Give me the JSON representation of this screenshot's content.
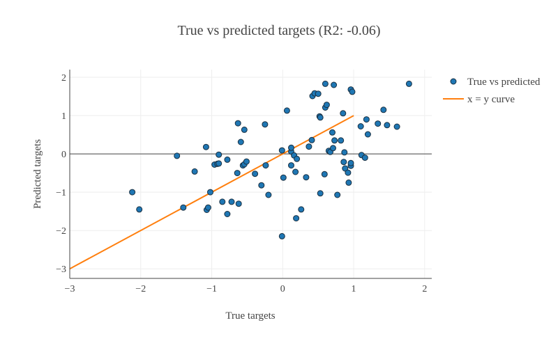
{
  "chart_data": {
    "type": "scatter",
    "title": "True vs predicted targets (R2: -0.06)",
    "xlabel": "True targets",
    "ylabel": "Predicted targets",
    "xlim": [
      -3,
      2.1
    ],
    "ylim": [
      -3.25,
      2.2
    ],
    "x_ticks": [
      -3,
      -2,
      -1,
      0,
      1,
      2
    ],
    "x_tick_labels": [
      "−3",
      "−2",
      "−1",
      "0",
      "1",
      "2"
    ],
    "y_ticks": [
      -3,
      -2,
      -1,
      0,
      1,
      2
    ],
    "y_tick_labels": [
      "−3",
      "−2",
      "−1",
      "0",
      "1",
      "2"
    ],
    "grid": true,
    "legend_position": "top-right",
    "series": [
      {
        "name": "True vs predicted",
        "kind": "markers",
        "color": "#1f77b4",
        "points": [
          [
            -2.12,
            -1.0
          ],
          [
            -2.02,
            -1.45
          ],
          [
            -1.49,
            -0.05
          ],
          [
            -1.4,
            -1.4
          ],
          [
            -1.24,
            -0.46
          ],
          [
            -1.08,
            0.18
          ],
          [
            -1.07,
            -1.46
          ],
          [
            -1.05,
            -1.4
          ],
          [
            -1.02,
            -1.0
          ],
          [
            -0.96,
            -0.28
          ],
          [
            -0.92,
            -0.26
          ],
          [
            -0.9,
            -0.25
          ],
          [
            -0.9,
            -0.02
          ],
          [
            -0.85,
            -1.25
          ],
          [
            -0.78,
            -0.15
          ],
          [
            -0.78,
            -1.57
          ],
          [
            -0.72,
            -1.25
          ],
          [
            -0.64,
            -0.5
          ],
          [
            -0.63,
            0.8
          ],
          [
            -0.62,
            -1.3
          ],
          [
            -0.59,
            0.31
          ],
          [
            -0.56,
            -0.3
          ],
          [
            -0.54,
            -0.27
          ],
          [
            -0.54,
            0.63
          ],
          [
            -0.51,
            -0.2
          ],
          [
            -0.39,
            -0.52
          ],
          [
            -0.3,
            -0.82
          ],
          [
            -0.25,
            0.77
          ],
          [
            -0.24,
            -0.3
          ],
          [
            -0.2,
            -1.07
          ],
          [
            -0.01,
            0.09
          ],
          [
            -0.01,
            -2.15
          ],
          [
            0.01,
            -0.62
          ],
          [
            0.06,
            1.13
          ],
          [
            0.12,
            0.06
          ],
          [
            0.12,
            0.16
          ],
          [
            0.12,
            -0.3
          ],
          [
            0.16,
            -0.04
          ],
          [
            0.18,
            -0.47
          ],
          [
            0.19,
            -1.68
          ],
          [
            0.2,
            -0.13
          ],
          [
            0.26,
            -1.45
          ],
          [
            0.33,
            -0.61
          ],
          [
            0.37,
            0.19
          ],
          [
            0.41,
            0.36
          ],
          [
            0.42,
            1.51
          ],
          [
            0.45,
            1.58
          ],
          [
            0.5,
            1.57
          ],
          [
            0.52,
            0.98
          ],
          [
            0.53,
            -1.03
          ],
          [
            0.53,
            0.95
          ],
          [
            0.59,
            -0.53
          ],
          [
            0.6,
            1.21
          ],
          [
            0.6,
            1.83
          ],
          [
            0.62,
            1.28
          ],
          [
            0.65,
            0.08
          ],
          [
            0.67,
            0.05
          ],
          [
            0.7,
            0.56
          ],
          [
            0.71,
            0.15
          ],
          [
            0.72,
            1.8
          ],
          [
            0.73,
            0.35
          ],
          [
            0.77,
            -1.07
          ],
          [
            0.82,
            0.35
          ],
          [
            0.85,
            1.06
          ],
          [
            0.86,
            -0.21
          ],
          [
            0.87,
            0.04
          ],
          [
            0.88,
            -0.38
          ],
          [
            0.92,
            -0.49
          ],
          [
            0.93,
            -0.75
          ],
          [
            0.96,
            -0.31
          ],
          [
            0.96,
            -0.24
          ],
          [
            0.96,
            1.68
          ],
          [
            0.98,
            1.62
          ],
          [
            1.1,
            0.72
          ],
          [
            1.11,
            -0.03
          ],
          [
            1.16,
            -0.1
          ],
          [
            1.18,
            0.9
          ],
          [
            1.2,
            0.51
          ],
          [
            1.34,
            0.79
          ],
          [
            1.42,
            1.15
          ],
          [
            1.47,
            0.75
          ],
          [
            1.61,
            0.71
          ],
          [
            1.78,
            1.83
          ]
        ]
      },
      {
        "name": "x = y curve",
        "kind": "line",
        "color": "#ff7f0e",
        "points": [
          [
            -3,
            -3
          ],
          [
            1,
            1
          ]
        ]
      }
    ]
  }
}
